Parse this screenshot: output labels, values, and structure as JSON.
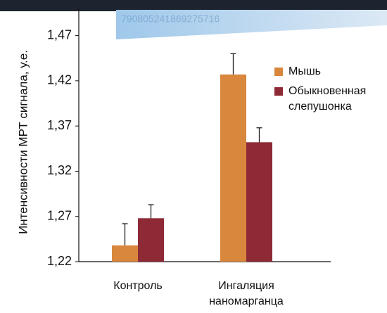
{
  "banner_text": "790805241869275716",
  "chart_data": {
    "type": "bar",
    "y_label": "Интенсивности МРТ сигнала, у.е.",
    "categories": [
      "Контроль",
      "Ингаляция наномарганца"
    ],
    "series": [
      {
        "name": "Мышь",
        "color": "#d8873c",
        "values": [
          1.238,
          1.427
        ],
        "errors": [
          0.024,
          0.023
        ]
      },
      {
        "name": "Обыкновенная слепушонка",
        "color": "#8e2a36",
        "values": [
          1.268,
          1.352
        ],
        "errors": [
          0.015,
          0.016
        ]
      }
    ],
    "ylim": [
      1.22,
      1.5
    ],
    "yticks": [
      {
        "value": 1.22,
        "label": "1,22"
      },
      {
        "value": 1.27,
        "label": "1,27"
      },
      {
        "value": 1.32,
        "label": "1,32"
      },
      {
        "value": 1.37,
        "label": "1,37"
      },
      {
        "value": 1.42,
        "label": "1,42"
      },
      {
        "value": 1.47,
        "label": "1,47"
      }
    ],
    "legend": "right"
  }
}
